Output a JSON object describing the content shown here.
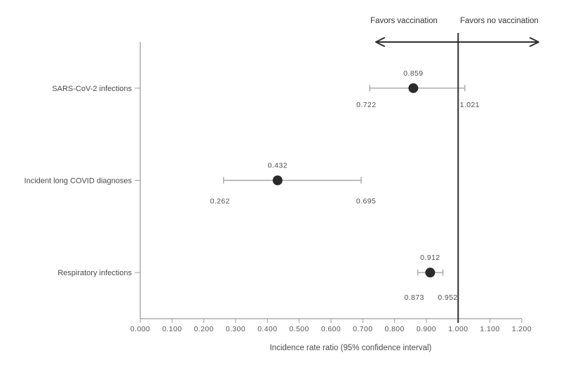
{
  "chart_data": {
    "type": "scatter",
    "subtype": "forest-plot-with-error-bars",
    "title": "",
    "xlabel": "Incidence rate ratio (95% confidence interval)",
    "ylabel": "",
    "x_axis": {
      "min": 0.0,
      "max": 1.2,
      "step": 0.1,
      "tick_labels": [
        "0.000",
        "0.100",
        "0.200",
        "0.300",
        "0.400",
        "0.500",
        "0.600",
        "0.700",
        "0.800",
        "0.900",
        "1.000",
        "1.100",
        "1.200"
      ]
    },
    "reference_line": {
      "value": 1.0
    },
    "annotations": {
      "left": "Favors vaccination",
      "right": "Favors no vaccination"
    },
    "legend": {
      "visible": false
    },
    "grid": false,
    "rows": [
      {
        "label": "SARS-CoV-2 infections",
        "value": 0.859,
        "ci_low": 0.722,
        "ci_high": 1.021,
        "value_label": "0.859",
        "ci_low_label": "0.722",
        "ci_high_label": "1.021"
      },
      {
        "label": "Incident long COVID diagnoses",
        "value": 0.432,
        "ci_low": 0.262,
        "ci_high": 0.695,
        "value_label": "0.432",
        "ci_low_label": "0.262",
        "ci_high_label": "0.695"
      },
      {
        "label": "Respiratory infections",
        "value": 0.912,
        "ci_low": 0.873,
        "ci_high": 0.952,
        "value_label": "0.912",
        "ci_low_label": "0.873",
        "ci_high_label": "0.952"
      }
    ],
    "colors": {
      "marker": "#2b2b2b",
      "error_bar": "#a6a6a6",
      "axis": "#9e9e9e",
      "reference_line": "#2e2e2e",
      "arrow": "#2e2e2e",
      "text": "#4a4a4a"
    }
  }
}
